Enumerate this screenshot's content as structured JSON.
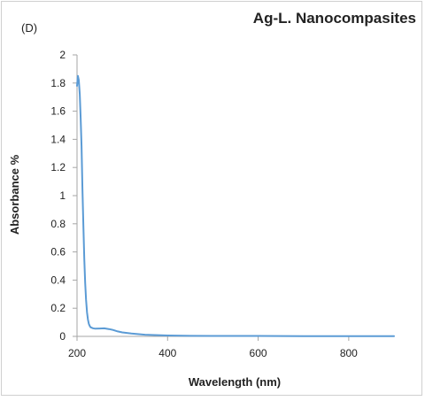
{
  "panel_label": "(D)",
  "chart_data": {
    "type": "line",
    "title": "Ag-L. Nanocompasites",
    "xlabel": "Wavelength (nm)",
    "ylabel": "Absorbance %",
    "xlim": [
      200,
      900
    ],
    "ylim": [
      0,
      2
    ],
    "xticks": [
      "200",
      "400",
      "600",
      "800"
    ],
    "yticks": [
      "0",
      "0.2",
      "0.4",
      "0.6",
      "0.8",
      "1",
      "1.2",
      "1.4",
      "1.6",
      "1.8",
      "2"
    ],
    "grid": false,
    "series_color": "#5b9bd5",
    "series": [
      {
        "x": [
          200,
          202,
          204,
          206,
          208,
          210,
          212,
          214,
          216,
          218,
          220,
          222,
          224,
          226,
          228,
          230,
          235,
          240,
          250,
          260,
          270,
          280,
          290,
          300,
          320,
          350,
          400,
          450,
          500,
          600,
          700,
          800,
          900
        ],
        "y": [
          1.78,
          1.85,
          1.82,
          1.72,
          1.55,
          1.35,
          1.05,
          0.78,
          0.55,
          0.38,
          0.26,
          0.17,
          0.12,
          0.09,
          0.075,
          0.065,
          0.058,
          0.055,
          0.056,
          0.057,
          0.052,
          0.045,
          0.035,
          0.028,
          0.02,
          0.012,
          0.006,
          0.004,
          0.003,
          0.003,
          0.002,
          0.001,
          0.001
        ]
      }
    ]
  }
}
